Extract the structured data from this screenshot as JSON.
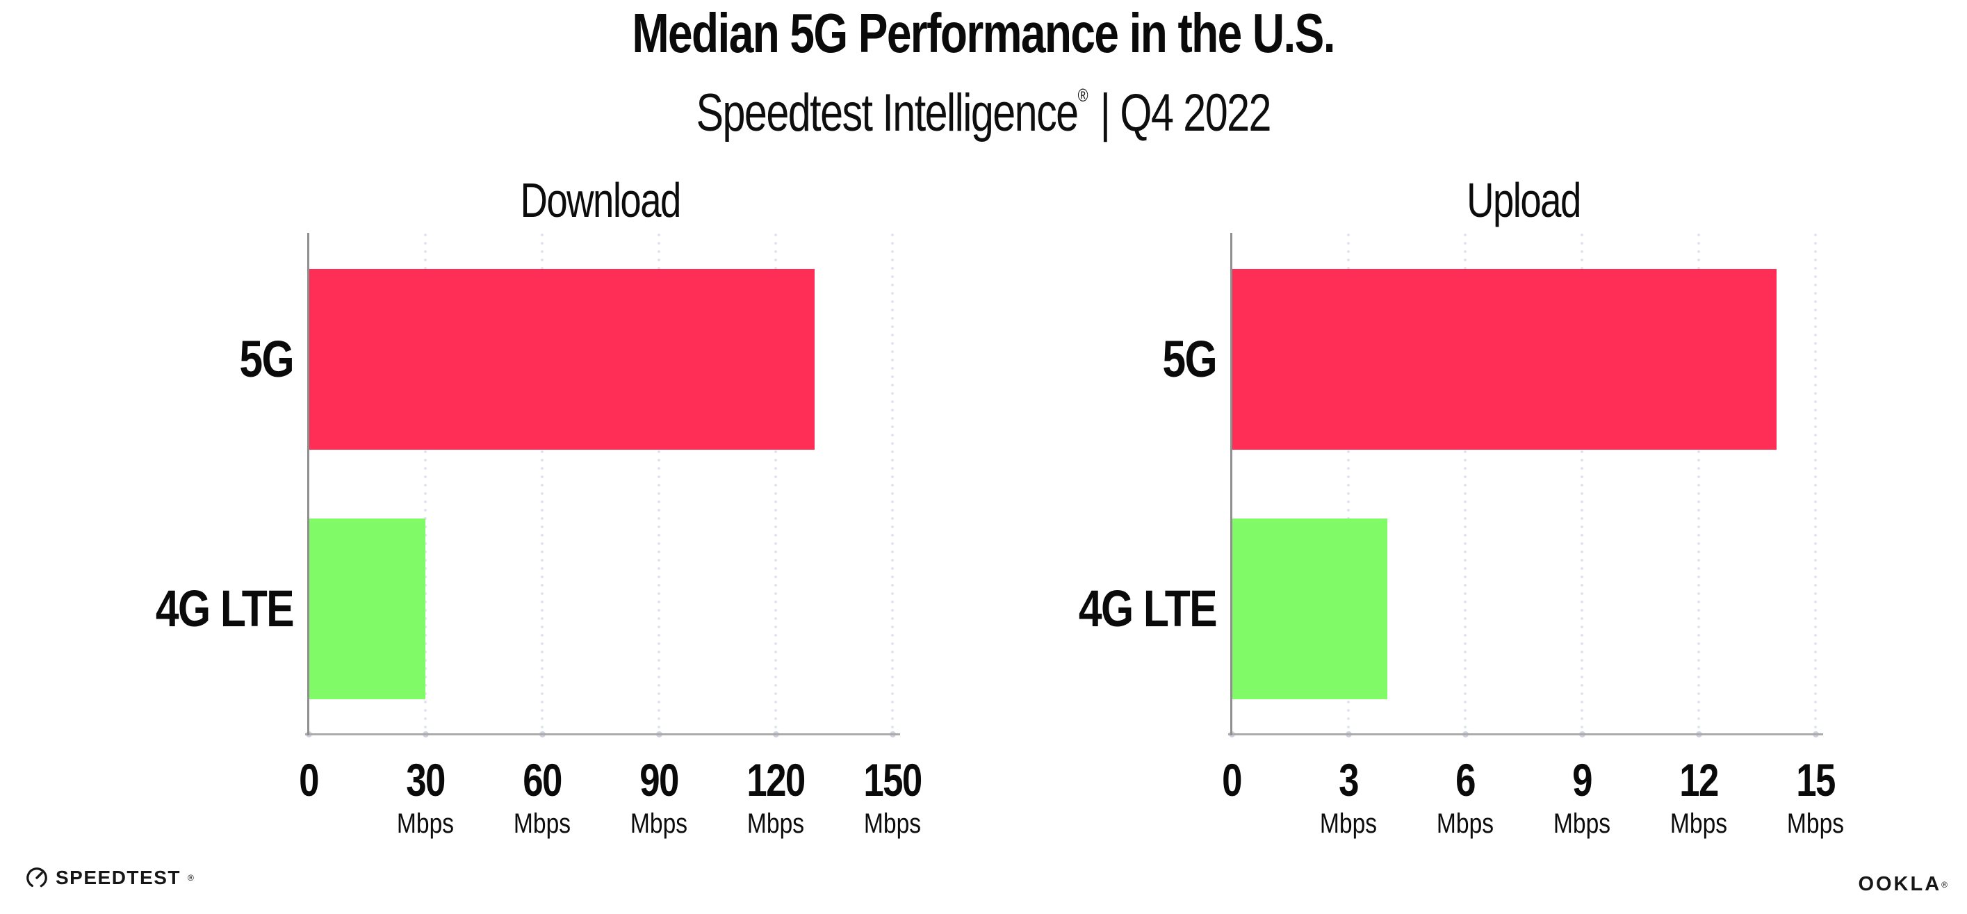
{
  "header": {
    "title": "Median 5G Performance in the U.S.",
    "subtitle_brand": "Speedtest Intelligence",
    "subtitle_reg": "®",
    "subtitle_rest": "| Q4 2022"
  },
  "chart_data": [
    {
      "type": "bar",
      "orientation": "horizontal",
      "title": "Download",
      "categories": [
        "5G",
        "4G LTE"
      ],
      "values": [
        130,
        30
      ],
      "bar_colors": [
        "#ff2e57",
        "#80fa66"
      ],
      "xlim": [
        0,
        150
      ],
      "ticks": [
        0,
        30,
        60,
        90,
        120,
        150
      ],
      "tick_unit": "Mbps",
      "unit_shown_on_zero": false,
      "grid": "vertical-dotted",
      "legend": "none"
    },
    {
      "type": "bar",
      "orientation": "horizontal",
      "title": "Upload",
      "categories": [
        "5G",
        "4G LTE"
      ],
      "values": [
        14,
        4
      ],
      "bar_colors": [
        "#ff2e57",
        "#80fa66"
      ],
      "xlim": [
        0,
        15
      ],
      "ticks": [
        0,
        3,
        6,
        9,
        12,
        15
      ],
      "tick_unit": "Mbps",
      "unit_shown_on_zero": false,
      "grid": "vertical-dotted",
      "legend": "none"
    }
  ],
  "footer": {
    "speedtest_label": "SPEEDTEST",
    "speedtest_reg": "®",
    "ookla_label": "OOKLA",
    "ookla_reg": "®"
  },
  "colors": {
    "bar_5g": "#ff2e57",
    "bar_4g_lte": "#80fa66",
    "grid_dot": "#e0e3ef",
    "axis_x": "#ababab",
    "axis_y": "#8f8f8f",
    "text": "#0a0a0a"
  }
}
